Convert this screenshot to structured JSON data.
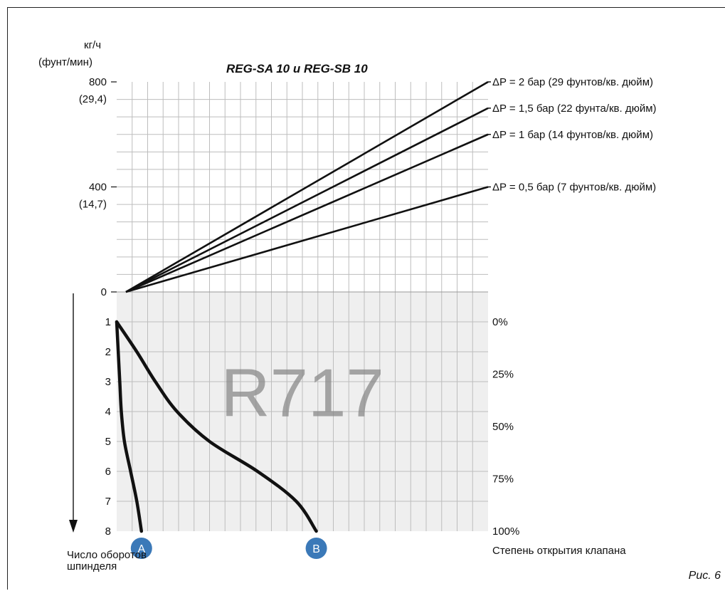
{
  "chart_data": [
    {
      "type": "line",
      "title": "REG-SA 10 и REG-SB 10",
      "ylabel_unit": "кг/ч",
      "ylabel_unit_alt": "(фунт/мин)",
      "y_ticks": [
        {
          "value": 0,
          "label": "0",
          "alt": ""
        },
        {
          "value": 400,
          "label": "400",
          "alt": "(14,7)"
        },
        {
          "value": 800,
          "label": "800",
          "alt": "(29,4)"
        }
      ],
      "ylim": [
        0,
        800
      ],
      "x_shared": "Число оборотов шпинделя",
      "series": [
        {
          "name": "ΔP = 2 бар (29 фунтов/кв. дюйм)",
          "start": 0,
          "end": 800
        },
        {
          "name": "ΔP = 1,5 бар (22 фунта/кв. дюйм)",
          "start": 0,
          "end": 700
        },
        {
          "name": "ΔP = 1 бар (14 фунтов/кв. дюйм)",
          "start": 0,
          "end": 600
        },
        {
          "name": "ΔP = 0,5 бар (7 фунтов/кв. дюйм)",
          "start": 0,
          "end": 400
        }
      ],
      "grid": true
    },
    {
      "type": "line",
      "xlabel": "Степень открытия клапана",
      "ylabel": "Число оборотов шпинделя",
      "y_ticks": [
        "0",
        "1",
        "2",
        "3",
        "4",
        "5",
        "6",
        "7",
        "8"
      ],
      "ylim": [
        0,
        8
      ],
      "right_ticks": [
        {
          "value": 1,
          "label": "0%"
        },
        {
          "value": 2.75,
          "label": "25%"
        },
        {
          "value": 4.5,
          "label": "50%"
        },
        {
          "value": 6.25,
          "label": "75%"
        },
        {
          "value": 8,
          "label": "100%"
        }
      ],
      "curves": [
        {
          "name": "A",
          "points": [
            [
              0,
              1
            ],
            [
              0.1,
              2
            ],
            [
              0.2,
              3
            ],
            [
              0.3,
              4
            ],
            [
              0.5,
              5
            ],
            [
              0.9,
              6
            ],
            [
              1.3,
              7
            ],
            [
              1.6,
              8
            ]
          ]
        },
        {
          "name": "B",
          "points": [
            [
              0,
              1
            ],
            [
              1.3,
              2
            ],
            [
              2.5,
              3
            ],
            [
              3.9,
              4
            ],
            [
              6.0,
              5
            ],
            [
              9.1,
              6
            ],
            [
              11.6,
              7
            ],
            [
              12.9,
              8
            ]
          ]
        }
      ],
      "grid": true,
      "watermark": "R717"
    }
  ],
  "figure_label": "Рис. 6",
  "colors": {
    "line": "#111111",
    "grid": "#bdbdbd",
    "lower_bg": "#efefef",
    "marker": "#3b79b8"
  }
}
